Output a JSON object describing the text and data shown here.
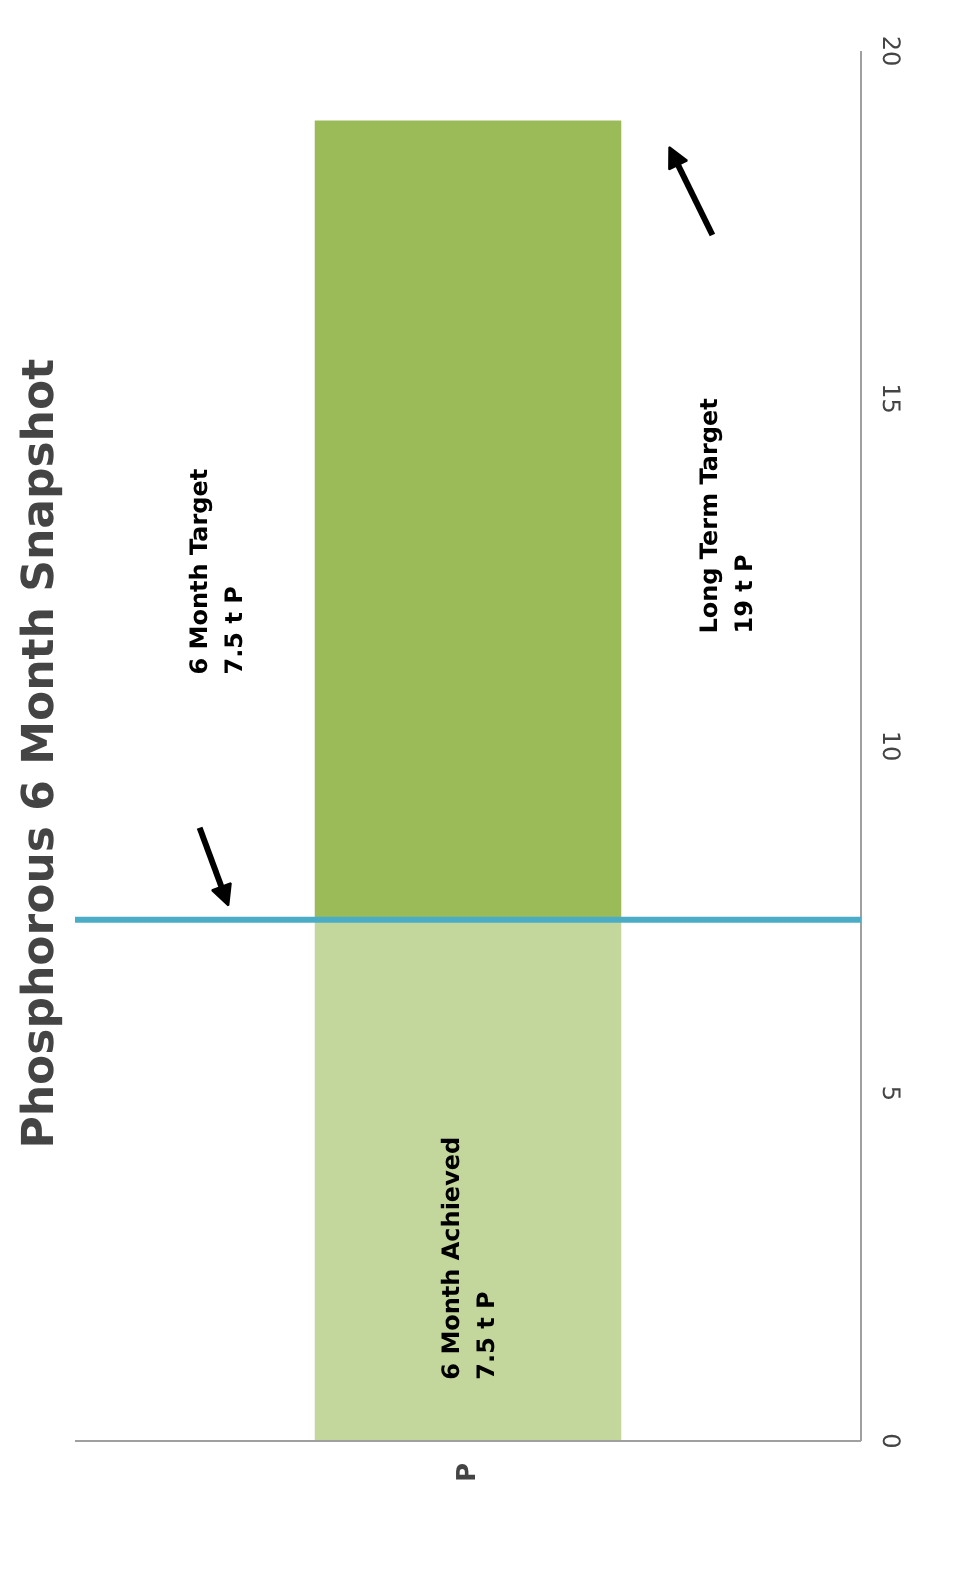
{
  "chart_data": {
    "type": "bar",
    "title": "Phosphorous  6 Month Snapshot",
    "categories": [
      "P"
    ],
    "stacked": true,
    "series": [
      {
        "color": "#c3d69b",
        "values": [
          7.5
        ]
      },
      {
        "color": "#9bbb59",
        "values": [
          11.5
        ]
      }
    ],
    "ylim": [
      0,
      20
    ],
    "yticks": [
      0,
      5,
      10,
      15,
      20
    ],
    "ref_lines": [
      {
        "axis": "y",
        "value": 7.5,
        "color": "#4bacc6"
      }
    ],
    "annotations": [
      "6 Month Target\n7.5 t P",
      "6 Month Achieved\n7.5 t P",
      "Long Term Target\n19 t P"
    ]
  }
}
